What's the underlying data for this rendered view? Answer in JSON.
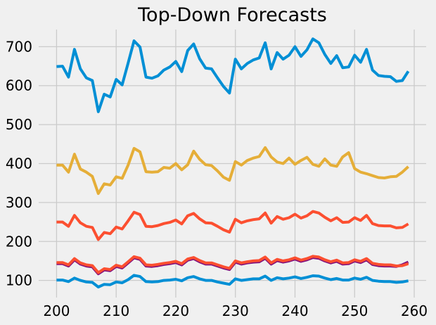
{
  "title": "Top-Down Forecasts",
  "colors": {
    "background": "#f0f0f0",
    "grid": "#cbcbcb",
    "text": "#000000",
    "blue": "#008fd5",
    "red": "#fc4f30",
    "yellow": "#e5ae38",
    "purple": "#810f7c"
  },
  "chart_data": {
    "type": "line",
    "title": "Top-Down Forecasts",
    "xlabel": "",
    "ylabel": "",
    "xlim": [
      197,
      262
    ],
    "ylim": [
      56,
      744
    ],
    "x_ticks": [
      200,
      210,
      220,
      230,
      240,
      250,
      260
    ],
    "y_ticks": [
      100,
      200,
      300,
      400,
      500,
      600,
      700
    ],
    "grid": true,
    "legend": false,
    "x_start": 200,
    "x_step": 1,
    "series": [
      {
        "name": "line-purple-mid",
        "color": "#810f7c",
        "values": [
          143,
          143,
          137,
          153,
          142,
          137,
          135,
          117,
          127,
          125,
          136,
          132,
          145,
          158,
          154,
          137,
          136,
          138,
          141,
          143,
          146,
          140,
          152,
          156,
          148,
          142,
          142,
          137,
          132,
          128,
          147,
          142,
          145,
          147,
          148,
          157,
          142,
          151,
          147,
          150,
          155,
          149,
          153,
          159,
          157,
          150,
          145,
          149,
          142,
          143,
          150,
          146,
          153,
          141,
          138,
          137,
          137,
          136,
          140,
          147
        ]
      },
      {
        "name": "line-red-mid",
        "color": "#fc4f30",
        "values": [
          146,
          146,
          140,
          156,
          145,
          140,
          138,
          120,
          130,
          128,
          139,
          135,
          148,
          161,
          157,
          140,
          139,
          141,
          144,
          146,
          149,
          143,
          155,
          159,
          151,
          145,
          145,
          140,
          135,
          131,
          150,
          145,
          148,
          150,
          151,
          160,
          145,
          154,
          150,
          153,
          158,
          152,
          156,
          162,
          160,
          153,
          148,
          152,
          145,
          146,
          153,
          149,
          156,
          144,
          141,
          140,
          140,
          137,
          138,
          143
        ]
      },
      {
        "name": "line-yellow",
        "color": "#e5ae38",
        "values": [
          396,
          396,
          378,
          424,
          386,
          378,
          367,
          323,
          348,
          345,
          366,
          362,
          396,
          439,
          430,
          379,
          378,
          379,
          390,
          388,
          400,
          384,
          397,
          432,
          411,
          397,
          395,
          381,
          365,
          357,
          405,
          396,
          408,
          414,
          418,
          441,
          417,
          404,
          400,
          414,
          398,
          408,
          416,
          398,
          393,
          412,
          396,
          393,
          417,
          428,
          387,
          378,
          374,
          369,
          364,
          363,
          366,
          367,
          378,
          392
        ]
      },
      {
        "name": "line-red-upper",
        "color": "#fc4f30",
        "values": [
          250,
          250,
          239,
          267,
          248,
          239,
          236,
          205,
          223,
          220,
          237,
          232,
          253,
          275,
          269,
          239,
          238,
          241,
          246,
          249,
          255,
          245,
          266,
          272,
          258,
          248,
          247,
          239,
          230,
          224,
          257,
          248,
          253,
          256,
          258,
          273,
          247,
          264,
          257,
          261,
          270,
          260,
          266,
          277,
          273,
          262,
          253,
          261,
          249,
          250,
          261,
          254,
          267,
          246,
          241,
          240,
          240,
          235,
          236,
          245
        ]
      },
      {
        "name": "line-blue-total",
        "color": "#008fd5",
        "values": [
          649,
          650,
          622,
          693,
          643,
          620,
          613,
          533,
          578,
          571,
          616,
          602,
          658,
          715,
          699,
          622,
          619,
          625,
          640,
          648,
          662,
          636,
          690,
          707,
          669,
          645,
          643,
          620,
          598,
          581,
          668,
          643,
          657,
          666,
          671,
          710,
          643,
          685,
          668,
          678,
          700,
          675,
          692,
          720,
          710,
          680,
          657,
          677,
          646,
          648,
          678,
          660,
          693,
          640,
          626,
          624,
          623,
          611,
          613,
          637
        ]
      },
      {
        "name": "line-blue-bottom",
        "color": "#008fd5",
        "values": [
          101,
          101,
          97,
          106,
          100,
          96,
          95,
          83,
          90,
          89,
          96,
          94,
          102,
          113,
          110,
          97,
          96,
          97,
          100,
          101,
          103,
          99,
          107,
          110,
          104,
          100,
          100,
          96,
          93,
          90,
          104,
          100,
          102,
          104,
          104,
          111,
          100,
          107,
          104,
          106,
          109,
          105,
          108,
          112,
          111,
          106,
          102,
          105,
          101,
          101,
          106,
          103,
          108,
          100,
          98,
          97,
          97,
          95,
          96,
          99
        ]
      }
    ]
  }
}
